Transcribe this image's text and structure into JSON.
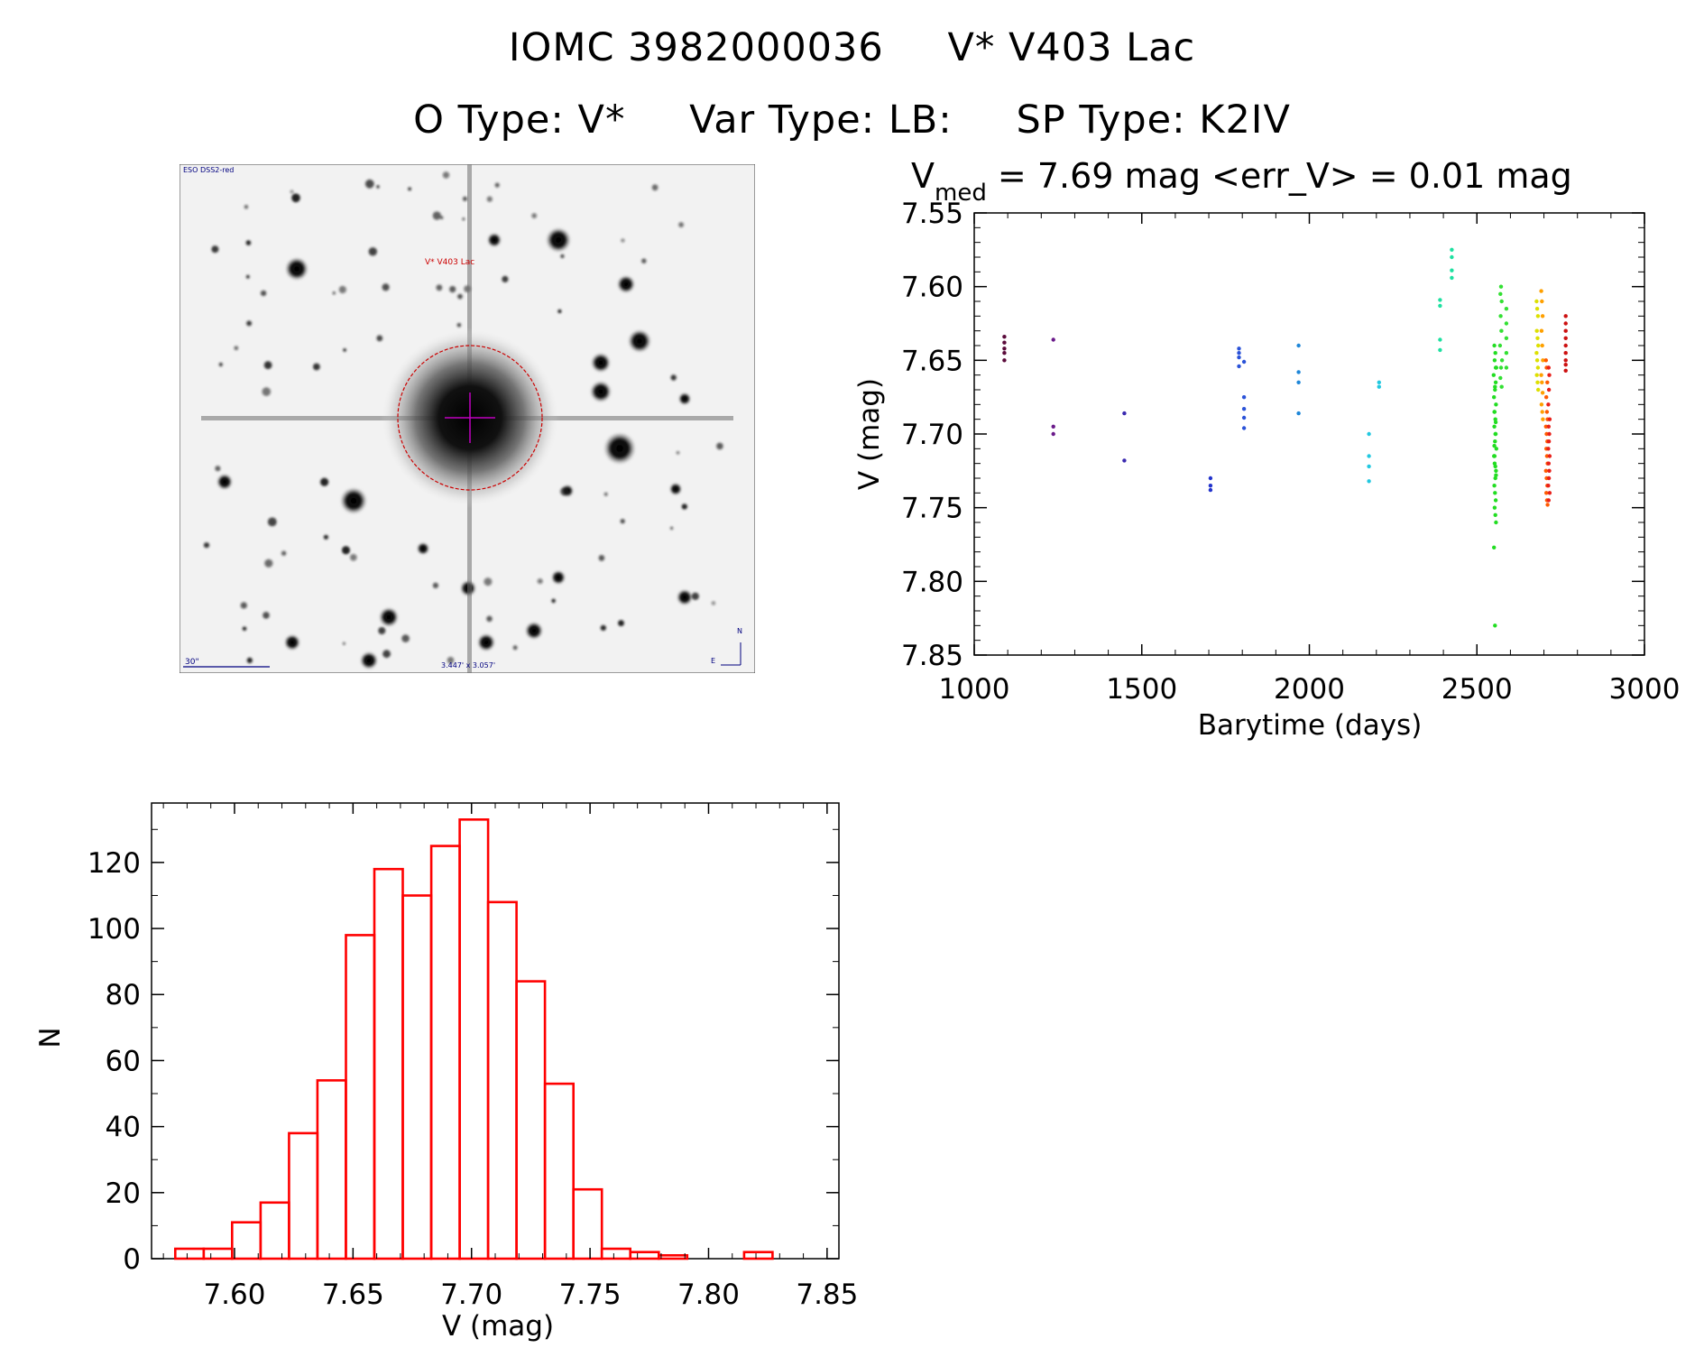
{
  "header": {
    "object_id": "IOMC 3982000036",
    "object_name": "V* V403 Lac",
    "o_type": "O Type: V*",
    "var_type": "Var Type: LB:",
    "sp_type": "SP Type: K2IV"
  },
  "finder": {
    "survey_label": "ESO DSS2-red",
    "target_label": "V* V403 Lac",
    "scale_label": "30\"",
    "fov_label": "3.447' x 3.057'",
    "north_label": "N",
    "east_label": "E",
    "colors": {
      "target": "#cc0000",
      "crosshair": "#c000c0",
      "overlay_text": "#00007f"
    }
  },
  "chart_data": [
    {
      "type": "scatter",
      "title_prefix": "V",
      "title_sub": "med",
      "title_rest": " = 7.69 mag <err_V> = 0.01 mag",
      "xlabel": "Barytime (days)",
      "ylabel": "V (mag)",
      "xlim": [
        1000,
        3000
      ],
      "ylim": [
        7.85,
        7.55
      ],
      "y_inverted": true,
      "x_ticks": [
        1000,
        1500,
        2000,
        2500,
        3000
      ],
      "y_ticks": [
        "7.55",
        "7.60",
        "7.65",
        "7.70",
        "7.75",
        "7.80",
        "7.85"
      ],
      "series": [
        {
          "color": "#5a0a3a",
          "x": [
            1090,
            1090,
            1090,
            1090,
            1090
          ],
          "y": [
            7.634,
            7.638,
            7.642,
            7.645,
            7.65
          ]
        },
        {
          "color": "#6a1a8a",
          "x": [
            1236,
            1236,
            1236
          ],
          "y": [
            7.636,
            7.695,
            7.7
          ]
        },
        {
          "color": "#3a2ab0",
          "x": [
            1448,
            1448
          ],
          "y": [
            7.686,
            7.718
          ]
        },
        {
          "color": "#2233cc",
          "x": [
            1705,
            1705,
            1705
          ],
          "y": [
            7.73,
            7.735,
            7.738
          ]
        },
        {
          "color": "#2a52d8",
          "x": [
            1790,
            1790,
            1790,
            1790,
            1805,
            1805,
            1805,
            1805,
            1805
          ],
          "y": [
            7.642,
            7.645,
            7.648,
            7.654,
            7.651,
            7.675,
            7.683,
            7.689,
            7.696
          ]
        },
        {
          "color": "#1e86d8",
          "x": [
            1968,
            1968,
            1968,
            1968
          ],
          "y": [
            7.64,
            7.658,
            7.665,
            7.686
          ]
        },
        {
          "color": "#22c8e0",
          "x": [
            2178,
            2178,
            2178,
            2178,
            2208,
            2208
          ],
          "y": [
            7.7,
            7.715,
            7.722,
            7.732,
            7.665,
            7.668
          ]
        },
        {
          "color": "#1ee0a0",
          "x": [
            2390,
            2390,
            2390,
            2390,
            2425,
            2425,
            2425,
            2425
          ],
          "y": [
            7.609,
            7.613,
            7.636,
            7.643,
            7.575,
            7.58,
            7.589,
            7.594
          ]
        },
        {
          "color": "#22dd22",
          "x": [
            2552,
            2555,
            2553,
            2558,
            2550,
            2556,
            2554,
            2551,
            2557,
            2553,
            2555,
            2552,
            2556,
            2554,
            2558,
            2551,
            2553,
            2557,
            2555,
            2552,
            2554,
            2556,
            2553,
            2555,
            2557,
            2551,
            2554,
            2556,
            2552,
            2555,
            2553,
            2557,
            2554,
            2556,
            2552,
            2555
          ],
          "y": [
            7.64,
            7.645,
            7.65,
            7.655,
            7.66,
            7.665,
            7.67,
            7.675,
            7.68,
            7.685,
            7.69,
            7.695,
            7.7,
            7.705,
            7.71,
            7.715,
            7.72,
            7.725,
            7.73,
            7.735,
            7.74,
            7.745,
            7.75,
            7.755,
            7.76,
            7.777,
            7.83,
            7.655,
            7.685,
            7.7,
            7.715,
            7.728,
            7.668,
            7.692,
            7.708,
            7.722
          ]
        },
        {
          "color": "#33e033",
          "x": [
            2572,
            2570,
            2574,
            2571,
            2573,
            2569,
            2575,
            2572,
            2570,
            2574,
            2588,
            2588,
            2588,
            2588,
            2588
          ],
          "y": [
            7.6,
            7.605,
            7.61,
            7.62,
            7.63,
            7.64,
            7.65,
            7.655,
            7.662,
            7.668,
            7.615,
            7.625,
            7.635,
            7.645,
            7.655
          ]
        },
        {
          "color": "#dde000",
          "x": [
            2678,
            2680,
            2682,
            2679,
            2681,
            2683,
            2678,
            2680,
            2682,
            2679,
            2681,
            2683
          ],
          "y": [
            7.61,
            7.615,
            7.62,
            7.63,
            7.635,
            7.64,
            7.645,
            7.65,
            7.655,
            7.66,
            7.665,
            7.67
          ]
        },
        {
          "color": "#ffa000",
          "x": [
            2692,
            2694,
            2696,
            2693,
            2695,
            2697,
            2692,
            2694,
            2696,
            2693,
            2695,
            2697
          ],
          "y": [
            7.603,
            7.61,
            7.62,
            7.63,
            7.64,
            7.65,
            7.66,
            7.665,
            7.672,
            7.68,
            7.685,
            7.69
          ]
        },
        {
          "color": "#ff5a00",
          "x": [
            2706,
            2708,
            2710,
            2707,
            2709,
            2711,
            2706,
            2708,
            2710,
            2707,
            2709,
            2711,
            2706,
            2708,
            2710,
            2707,
            2709,
            2711
          ],
          "y": [
            7.65,
            7.655,
            7.665,
            7.675,
            7.685,
            7.69,
            7.695,
            7.7,
            7.705,
            7.71,
            7.715,
            7.72,
            7.725,
            7.73,
            7.735,
            7.74,
            7.745,
            7.748
          ]
        },
        {
          "color": "#e8201a",
          "x": [
            2714,
            2716,
            2715,
            2713,
            2717,
            2714,
            2716,
            2715,
            2713,
            2717,
            2714,
            2716,
            2715,
            2713,
            2717,
            2714
          ],
          "y": [
            7.655,
            7.66,
            7.67,
            7.68,
            7.69,
            7.695,
            7.7,
            7.705,
            7.71,
            7.715,
            7.72,
            7.725,
            7.73,
            7.735,
            7.74,
            7.745
          ]
        },
        {
          "color": "#cc1010",
          "x": [
            2765,
            2765,
            2765,
            2765,
            2765,
            2765,
            2765,
            2765,
            2765
          ],
          "y": [
            7.62,
            7.625,
            7.63,
            7.635,
            7.64,
            7.645,
            7.65,
            7.653,
            7.657
          ]
        }
      ]
    },
    {
      "type": "bar",
      "style": "histogram",
      "xlabel": "V (mag)",
      "ylabel": "N",
      "xlim": [
        7.565,
        7.855
      ],
      "ylim": [
        0,
        138
      ],
      "x_ticks": [
        "7.60",
        "7.65",
        "7.70",
        "7.75",
        "7.80",
        "7.85"
      ],
      "y_ticks": [
        0,
        20,
        40,
        60,
        80,
        100,
        120
      ],
      "bin_width": 0.012,
      "bin_starts": [
        7.575,
        7.587,
        7.599,
        7.611,
        7.623,
        7.635,
        7.647,
        7.659,
        7.671,
        7.683,
        7.695,
        7.707,
        7.719,
        7.731,
        7.743,
        7.755,
        7.767,
        7.779,
        7.791,
        7.803,
        7.815,
        7.827
      ],
      "values": [
        3,
        3,
        11,
        17,
        38,
        54,
        98,
        118,
        110,
        125,
        133,
        108,
        84,
        53,
        21,
        3,
        2,
        1,
        0,
        0,
        2,
        0
      ],
      "color": "#ff0000"
    }
  ]
}
